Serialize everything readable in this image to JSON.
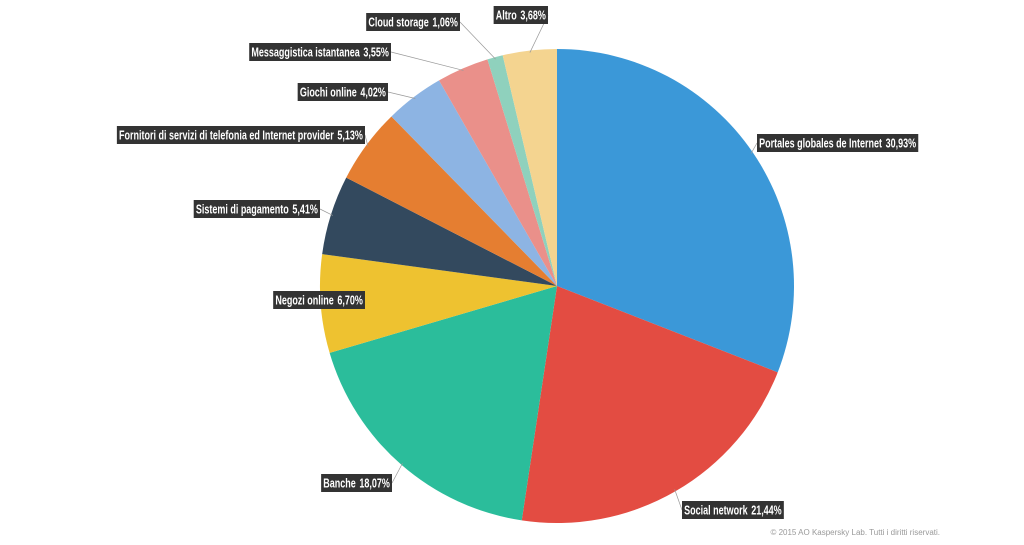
{
  "chart_data": {
    "type": "pie",
    "categories": [
      "Portales globales de Internet",
      "Social network",
      "Banche",
      "Negozi online",
      "Sistemi di pagamento",
      "Fornitori di servizi di telefonia ed Internet provider",
      "Giochi online",
      "Messaggistica istantanea",
      "Cloud storage",
      "Altro"
    ],
    "values": [
      30.93,
      21.44,
      18.07,
      6.7,
      5.41,
      5.13,
      4.02,
      3.55,
      1.06,
      3.68
    ],
    "value_labels": [
      "30,93%",
      "21,44%",
      "18,07%",
      "6,70%",
      "5,41%",
      "5,13%",
      "4,02%",
      "3,55%",
      "1,06%",
      "3,68%"
    ],
    "colors": [
      "#3b98d8",
      "#e34c42",
      "#2bbd9b",
      "#eec230",
      "#33495e",
      "#e57e31",
      "#8db4e3",
      "#ea908a",
      "#8fd1bd",
      "#f4d490"
    ],
    "credit": "© 2015 AO Kaspersky Lab. Tutti i diritti riservati."
  }
}
